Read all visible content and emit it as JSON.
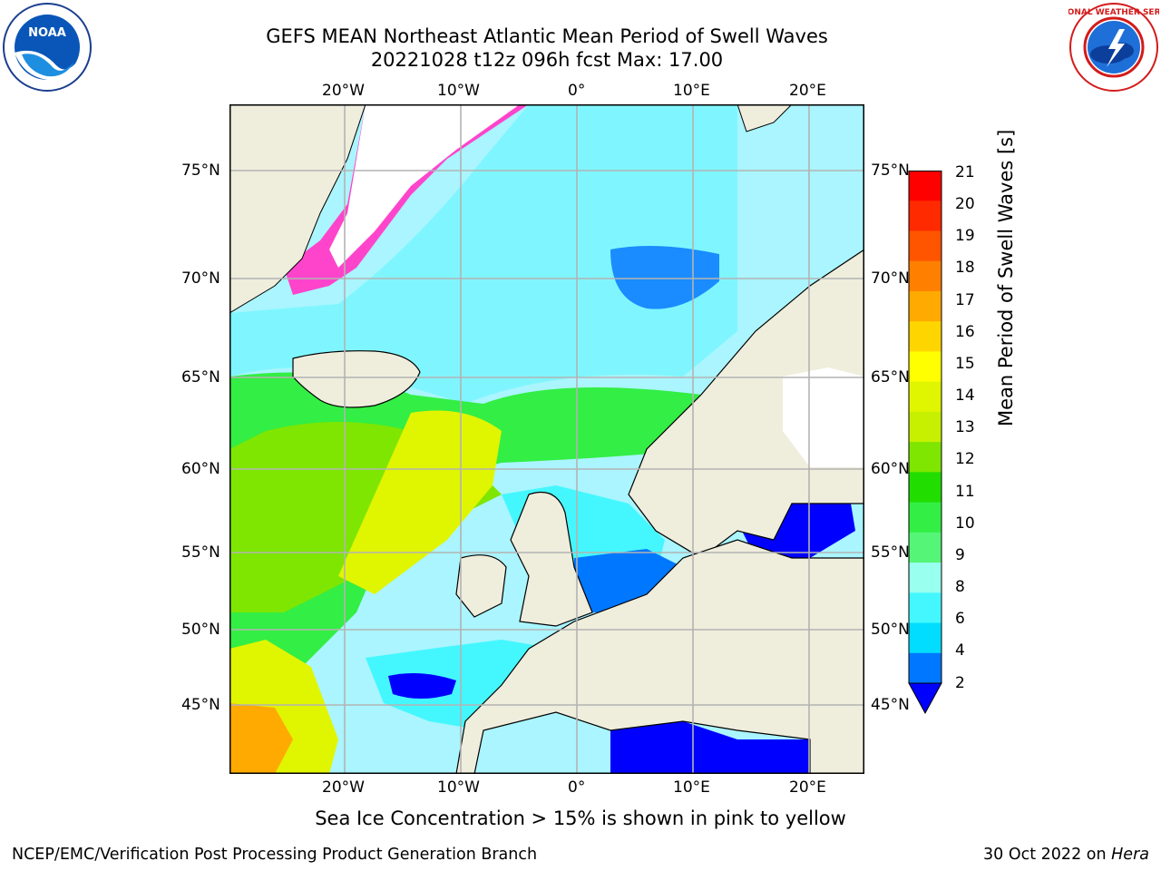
{
  "title_line1": "GEFS MEAN Northeast Atlantic Mean Period of Swell Waves",
  "title_line2": "20221028 t12z 096h fcst   Max: 17.00",
  "lon_ticks": [
    "20°W",
    "10°W",
    "0°",
    "10°E",
    "20°E"
  ],
  "lat_ticks_left": [
    "75°N",
    "70°N",
    "65°N",
    "60°N",
    "55°N",
    "50°N",
    "45°N"
  ],
  "lat_ticks_right": [
    "75°N",
    "70°N",
    "65°N",
    "60°N",
    "55°N",
    "50°N",
    "45°N"
  ],
  "colorbar": {
    "title": "Mean Period of Swell Waves [s]",
    "tick_labels": [
      "21",
      "20",
      "19",
      "18",
      "17",
      "16",
      "15",
      "14",
      "13",
      "12",
      "11",
      "10",
      "9",
      "8",
      "6",
      "4",
      "2"
    ],
    "bands": [
      {
        "min": 20,
        "max": 21,
        "color": "#ff0000"
      },
      {
        "min": 19,
        "max": 20,
        "color": "#ff2a00"
      },
      {
        "min": 18,
        "max": 19,
        "color": "#ff5500"
      },
      {
        "min": 17,
        "max": 18,
        "color": "#ff8000"
      },
      {
        "min": 16,
        "max": 17,
        "color": "#ffaa00"
      },
      {
        "min": 15,
        "max": 16,
        "color": "#ffd500"
      },
      {
        "min": 14,
        "max": 15,
        "color": "#ffff00"
      },
      {
        "min": 13,
        "max": 14,
        "color": "#e0f500"
      },
      {
        "min": 12,
        "max": 13,
        "color": "#c6f000"
      },
      {
        "min": 11,
        "max": 12,
        "color": "#7ee600"
      },
      {
        "min": 10,
        "max": 11,
        "color": "#22dd00"
      },
      {
        "min": 9,
        "max": 10,
        "color": "#33ee44"
      },
      {
        "min": 8,
        "max": 9,
        "color": "#55f577"
      },
      {
        "min": 6,
        "max": 8,
        "color": "#99ffee"
      },
      {
        "min": 4,
        "max": 6,
        "color": "#44f7ff"
      },
      {
        "min": 2,
        "max": 4,
        "color": "#00ddff"
      },
      {
        "min": 0,
        "max": 2,
        "color": "#0077ff"
      },
      {
        "extend": "below",
        "color": "#0000ff"
      }
    ]
  },
  "map_colors": {
    "land": "#efeddc",
    "ocean_far": "#aaf5ff",
    "grid": "#b3b3b3",
    "coast": "#000000",
    "ice": "#ff44cc"
  },
  "ice_note": "Sea Ice Concentration > 15% is shown in pink to yellow",
  "footer_left": "NCEP/EMC/Verification Post Processing Product Generation Branch",
  "footer_right_date": "30 Oct 2022 on ",
  "footer_right_machine": "Hera",
  "logos": {
    "left": "noaa-logo",
    "right": "nws-logo"
  }
}
